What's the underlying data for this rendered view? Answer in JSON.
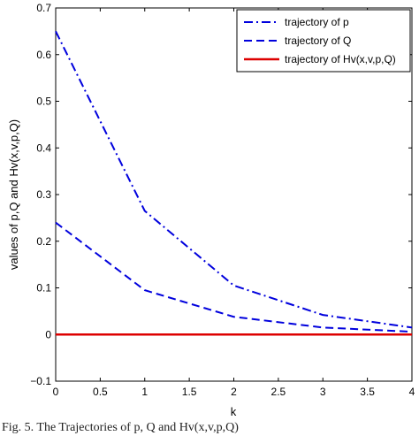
{
  "caption": "Fig. 5. The Trajectories of p, Q and Hv(x,v,p,Q)",
  "chart_data": {
    "type": "line",
    "xlabel": "k",
    "ylabel": "values of p,Q and Hv(x,v,p,Q)",
    "xlim": [
      0,
      4
    ],
    "ylim": [
      -0.1,
      0.7
    ],
    "xticks": [
      0,
      0.5,
      1,
      1.5,
      2,
      2.5,
      3,
      3.5,
      4
    ],
    "xtick_labels": [
      "0",
      "0.5",
      "1",
      "1.5",
      "2",
      "2.5",
      "3",
      "3.5",
      "4"
    ],
    "yticks": [
      -0.1,
      0,
      0.1,
      0.2,
      0.3,
      0.4,
      0.5,
      0.6,
      0.7
    ],
    "ytick_labels": [
      "−0.1",
      "0",
      "0.1",
      "0.2",
      "0.3",
      "0.4",
      "0.5",
      "0.6",
      "0.7"
    ],
    "grid": false,
    "legend_position": "top-right",
    "x": [
      0,
      1,
      2,
      3,
      4
    ],
    "series": [
      {
        "name": "trajectory of p",
        "values": [
          0.65,
          0.265,
          0.105,
          0.042,
          0.015
        ],
        "color": "#0000dd",
        "dash": "dashdot"
      },
      {
        "name": "trajectory of Q",
        "values": [
          0.24,
          0.095,
          0.038,
          0.015,
          0.006
        ],
        "color": "#0000dd",
        "dash": "dashed"
      },
      {
        "name": "trajectory of Hv(x,v,p,Q)",
        "values": [
          0.0,
          0.0,
          0.0,
          0.0,
          0.0
        ],
        "color": "#dd0000",
        "dash": "solid"
      }
    ]
  }
}
